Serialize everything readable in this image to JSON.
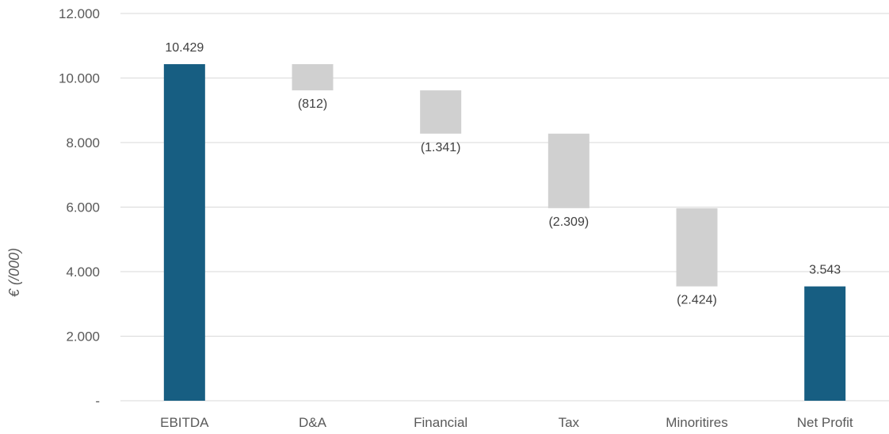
{
  "chart_data": {
    "type": "bar",
    "subtype": "waterfall",
    "ylabel": "€ (/000)",
    "ylim": [
      0,
      12000
    ],
    "yticks": [
      0,
      2000,
      4000,
      6000,
      8000,
      10000,
      12000
    ],
    "ytick_labels": [
      "-",
      "2.000",
      "4.000",
      "6.000",
      "8.000",
      "10.000",
      "12.000"
    ],
    "grid": true,
    "legend": "none",
    "colors": {
      "total": "#175e82",
      "change": "#d0d0d0"
    },
    "bars": [
      {
        "category": "EBITDA",
        "kind": "total",
        "start": 0,
        "end": 10429,
        "label": "10.429",
        "label_pos": "above"
      },
      {
        "category": "D&A",
        "kind": "change",
        "start": 10429,
        "end": 9617,
        "label": "(812)",
        "label_pos": "below"
      },
      {
        "category": "Financial",
        "kind": "change",
        "start": 9617,
        "end": 8276,
        "label": "(1.341)",
        "label_pos": "below"
      },
      {
        "category": "Tax",
        "kind": "change",
        "start": 8276,
        "end": 5967,
        "label": "(2.309)",
        "label_pos": "below"
      },
      {
        "category": "Minoritires",
        "kind": "change",
        "start": 5967,
        "end": 3543,
        "label": "(2.424)",
        "label_pos": "below"
      },
      {
        "category": "Net Profit",
        "kind": "total",
        "start": 0,
        "end": 3543,
        "label": "3.543",
        "label_pos": "above"
      }
    ]
  }
}
